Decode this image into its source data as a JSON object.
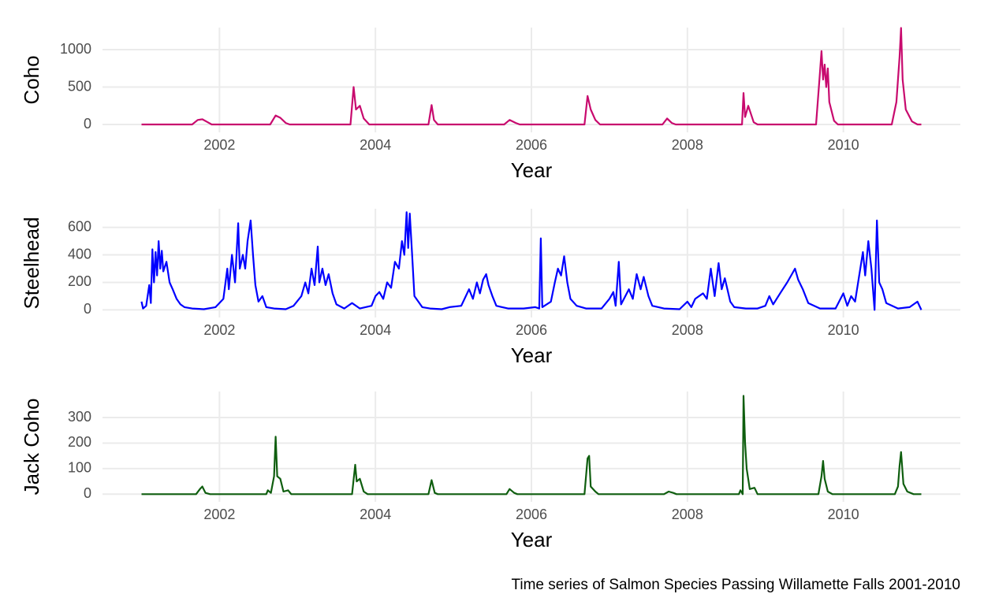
{
  "caption": "Time series of Salmon Species Passing Willamette Falls 2001-2010",
  "chart_data": [
    {
      "type": "line",
      "y_label": "Coho",
      "x_label": "Year",
      "color": "#c80a6e",
      "xlim": [
        2000.5,
        2011.5
      ],
      "xticks": [
        2002,
        2004,
        2006,
        2008,
        2010
      ],
      "ylim": [
        -105,
        1295
      ],
      "yticks": [
        0,
        500,
        1000
      ],
      "x": [
        2001.0,
        2001.65,
        2001.72,
        2001.78,
        2001.85,
        2001.9,
        2002.65,
        2002.72,
        2002.78,
        2002.85,
        2002.9,
        2003.68,
        2003.72,
        2003.75,
        2003.8,
        2003.85,
        2003.92,
        2004.68,
        2004.72,
        2004.75,
        2004.8,
        2005.65,
        2005.72,
        2005.8,
        2005.85,
        2006.68,
        2006.72,
        2006.76,
        2006.82,
        2006.88,
        2007.68,
        2007.74,
        2007.8,
        2007.85,
        2008.7,
        2008.72,
        2008.74,
        2008.78,
        2008.85,
        2008.9,
        2009.65,
        2009.7,
        2009.72,
        2009.74,
        2009.76,
        2009.78,
        2009.8,
        2009.82,
        2009.88,
        2009.93,
        2010.62,
        2010.68,
        2010.72,
        2010.74,
        2010.76,
        2010.8,
        2010.88,
        2010.95,
        2011.0
      ],
      "values": [
        0,
        0,
        60,
        70,
        30,
        0,
        0,
        120,
        90,
        20,
        0,
        0,
        500,
        200,
        250,
        80,
        0,
        0,
        260,
        60,
        0,
        0,
        60,
        20,
        0,
        0,
        380,
        200,
        60,
        0,
        0,
        80,
        20,
        0,
        0,
        420,
        100,
        250,
        30,
        0,
        0,
        700,
        980,
        600,
        800,
        500,
        750,
        300,
        50,
        0,
        0,
        300,
        900,
        1290,
        600,
        200,
        40,
        0,
        0
      ]
    },
    {
      "type": "line",
      "y_label": "Steelhead",
      "x_label": "Year",
      "color": "#0000ff",
      "xlim": [
        2000.5,
        2011.5
      ],
      "xticks": [
        2002,
        2004,
        2006,
        2008,
        2010
      ],
      "ylim": [
        -55,
        735
      ],
      "yticks": [
        0,
        200,
        400,
        600
      ],
      "x": [
        2001.0,
        2001.02,
        2001.06,
        2001.1,
        2001.12,
        2001.14,
        2001.16,
        2001.18,
        2001.2,
        2001.22,
        2001.24,
        2001.26,
        2001.28,
        2001.32,
        2001.36,
        2001.4,
        2001.45,
        2001.5,
        2001.55,
        2001.65,
        2001.8,
        2001.95,
        2002.05,
        2002.1,
        2002.12,
        2002.16,
        2002.2,
        2002.24,
        2002.26,
        2002.3,
        2002.33,
        2002.36,
        2002.4,
        2002.43,
        2002.46,
        2002.5,
        2002.55,
        2002.6,
        2002.7,
        2002.85,
        2002.95,
        2003.05,
        2003.1,
        2003.14,
        2003.18,
        2003.22,
        2003.26,
        2003.28,
        2003.32,
        2003.36,
        2003.4,
        2003.45,
        2003.5,
        2003.6,
        2003.7,
        2003.8,
        2003.95,
        2004.0,
        2004.05,
        2004.1,
        2004.15,
        2004.2,
        2004.25,
        2004.3,
        2004.34,
        2004.37,
        2004.4,
        2004.42,
        2004.44,
        2004.47,
        2004.5,
        2004.55,
        2004.6,
        2004.7,
        2004.85,
        2004.95,
        2005.1,
        2005.2,
        2005.25,
        2005.3,
        2005.34,
        2005.38,
        2005.42,
        2005.45,
        2005.5,
        2005.55,
        2005.7,
        2005.9,
        2006.05,
        2006.1,
        2006.12,
        2006.14,
        2006.25,
        2006.3,
        2006.34,
        2006.38,
        2006.42,
        2006.46,
        2006.5,
        2006.58,
        2006.7,
        2006.9,
        2007.0,
        2007.05,
        2007.08,
        2007.12,
        2007.15,
        2007.25,
        2007.3,
        2007.35,
        2007.4,
        2007.44,
        2007.5,
        2007.55,
        2007.7,
        2007.9,
        2008.0,
        2008.05,
        2008.1,
        2008.2,
        2008.25,
        2008.3,
        2008.35,
        2008.4,
        2008.44,
        2008.48,
        2008.55,
        2008.6,
        2008.75,
        2008.9,
        2009.0,
        2009.05,
        2009.1,
        2009.2,
        2009.28,
        2009.34,
        2009.38,
        2009.42,
        2009.48,
        2009.55,
        2009.7,
        2009.9,
        2010.0,
        2010.05,
        2010.1,
        2010.15,
        2010.25,
        2010.28,
        2010.32,
        2010.36,
        2010.4,
        2010.43,
        2010.46,
        2010.5,
        2010.55,
        2010.7,
        2010.85,
        2010.95,
        2011.0
      ],
      "values": [
        60,
        10,
        30,
        180,
        50,
        440,
        200,
        420,
        250,
        500,
        300,
        430,
        280,
        350,
        200,
        150,
        80,
        40,
        20,
        10,
        5,
        20,
        80,
        300,
        150,
        400,
        200,
        630,
        300,
        400,
        300,
        500,
        650,
        400,
        180,
        60,
        100,
        20,
        10,
        5,
        30,
        100,
        200,
        120,
        300,
        180,
        460,
        200,
        300,
        180,
        260,
        120,
        40,
        10,
        50,
        10,
        30,
        100,
        130,
        80,
        200,
        160,
        350,
        300,
        500,
        400,
        710,
        450,
        700,
        400,
        100,
        60,
        20,
        10,
        5,
        20,
        30,
        150,
        80,
        200,
        120,
        220,
        260,
        180,
        100,
        30,
        10,
        10,
        20,
        10,
        520,
        20,
        60,
        200,
        300,
        250,
        390,
        200,
        80,
        30,
        10,
        10,
        80,
        130,
        30,
        350,
        40,
        150,
        80,
        260,
        150,
        240,
        100,
        30,
        10,
        5,
        60,
        20,
        80,
        120,
        80,
        300,
        100,
        340,
        150,
        230,
        60,
        20,
        10,
        10,
        30,
        100,
        40,
        130,
        200,
        260,
        300,
        220,
        150,
        50,
        10,
        10,
        120,
        30,
        100,
        60,
        420,
        250,
        500,
        300,
        0,
        650,
        200,
        150,
        50,
        10,
        20,
        60,
        0
      ]
    },
    {
      "type": "line",
      "y_label": "Jack Coho",
      "x_label": "Year",
      "color": "#0f5e0f",
      "xlim": [
        2000.5,
        2011.5
      ],
      "xticks": [
        2002,
        2004,
        2006,
        2008,
        2010
      ],
      "ylim": [
        -30,
        402
      ],
      "yticks": [
        0,
        100,
        200,
        300
      ],
      "x": [
        2001.0,
        2001.7,
        2001.75,
        2001.78,
        2001.82,
        2001.88,
        2002.6,
        2002.62,
        2002.66,
        2002.7,
        2002.72,
        2002.74,
        2002.78,
        2002.82,
        2002.88,
        2002.92,
        2003.7,
        2003.74,
        2003.76,
        2003.8,
        2003.85,
        2003.9,
        2004.68,
        2004.72,
        2004.76,
        2004.8,
        2005.68,
        2005.72,
        2005.78,
        2005.82,
        2006.68,
        2006.72,
        2006.74,
        2006.76,
        2006.82,
        2006.86,
        2007.7,
        2007.76,
        2007.82,
        2007.86,
        2008.66,
        2008.68,
        2008.71,
        2008.72,
        2008.74,
        2008.76,
        2008.8,
        2008.86,
        2008.9,
        2009.68,
        2009.72,
        2009.74,
        2009.76,
        2009.8,
        2009.86,
        2010.66,
        2010.7,
        2010.72,
        2010.74,
        2010.77,
        2010.82,
        2010.9,
        2011.0
      ],
      "values": [
        0,
        0,
        20,
        30,
        5,
        0,
        0,
        15,
        5,
        70,
        225,
        70,
        60,
        10,
        15,
        0,
        0,
        115,
        50,
        60,
        10,
        0,
        0,
        55,
        5,
        0,
        0,
        20,
        5,
        0,
        0,
        140,
        150,
        30,
        10,
        0,
        0,
        10,
        5,
        0,
        0,
        15,
        0,
        385,
        200,
        100,
        20,
        25,
        0,
        0,
        70,
        130,
        60,
        10,
        0,
        0,
        30,
        110,
        165,
        40,
        10,
        0,
        0
      ]
    }
  ]
}
